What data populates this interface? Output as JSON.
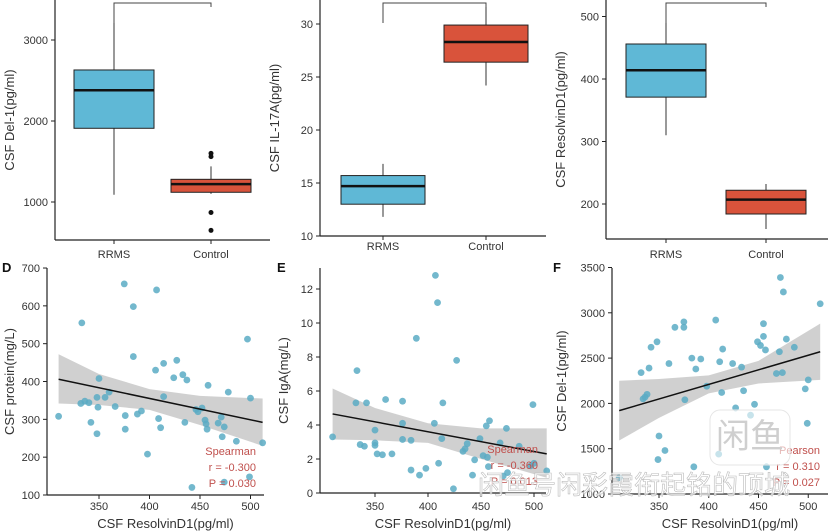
{
  "figure": {
    "colors": {
      "rrms": "#5fb8d6",
      "control": "#d9533b",
      "control_fd": "#c2594a",
      "point": "#5aabc4",
      "ci_band": "#c8c8c8",
      "fit_line": "#111111",
      "stat_text": "#c0504d",
      "axis": "#222222"
    },
    "watermark": {
      "text": "闲鱼号闲彩霞衔起铭的顶城",
      "logo_text": "闲鱼"
    }
  },
  "chart_data": [
    {
      "id": "A",
      "panel_label": "",
      "type": "box",
      "title": "",
      "xlabel": "",
      "ylabel": "CSF Del-1(pg/ml)",
      "ylim": [
        500,
        3500
      ],
      "yticks": [
        1000,
        2000,
        3000
      ],
      "categories": [
        "RRMS",
        "Control"
      ],
      "boxes": [
        {
          "group": "RRMS",
          "min": 1090,
          "q1": 1910,
          "median": 2380,
          "q3": 2630,
          "max": 3450,
          "outliers": []
        },
        {
          "group": "Control",
          "min": 1100,
          "q1": 1120,
          "median": 1220,
          "q3": 1280,
          "max": 1440,
          "outliers": [
            1600,
            1560,
            870,
            650
          ]
        }
      ],
      "significance_bracket": true
    },
    {
      "id": "B",
      "panel_label": "",
      "type": "box",
      "title": "",
      "xlabel": "",
      "ylabel": "CSF IL-17A(pg/ml)",
      "ylim": [
        10,
        32.3
      ],
      "yticks": [
        10,
        15,
        20,
        25,
        30
      ],
      "categories": [
        "RRMS",
        "Control"
      ],
      "boxes": [
        {
          "group": "RRMS",
          "min": 11.8,
          "q1": 13.0,
          "median": 14.7,
          "q3": 15.7,
          "max": 16.8,
          "outliers": []
        },
        {
          "group": "Control",
          "min": 24.2,
          "q1": 26.4,
          "median": 28.3,
          "q3": 29.9,
          "max": 31.7,
          "outliers": []
        }
      ],
      "significance_bracket": true
    },
    {
      "id": "C",
      "panel_label": "",
      "type": "box",
      "title": "",
      "xlabel": "",
      "ylabel": "CSF ResolvinD1(pg/ml)",
      "ylim": [
        145,
        525
      ],
      "yticks": [
        200,
        300,
        400,
        500
      ],
      "categories": [
        "RRMS",
        "Control"
      ],
      "boxes": [
        {
          "group": "RRMS",
          "min": 310,
          "q1": 371,
          "median": 414,
          "q3": 456,
          "max": 512,
          "outliers": []
        },
        {
          "group": "Control",
          "min": 160,
          "q1": 184,
          "median": 207,
          "q3": 222,
          "max": 232,
          "outliers": []
        }
      ],
      "significance_bracket": true
    },
    {
      "id": "D",
      "panel_label": "D",
      "type": "scatter",
      "title": "",
      "xlabel": "CSF ResolvinD1(pg/ml)",
      "ylabel": "CSF protein(mg/L)",
      "xlim": [
        305,
        515
      ],
      "ylim": [
        100,
        700
      ],
      "xticks": [
        350,
        400,
        450,
        500
      ],
      "yticks": [
        100,
        200,
        300,
        400,
        500,
        600,
        700
      ],
      "fit": {
        "x0": 310,
        "y0": 406,
        "x1": 512,
        "y1": 292
      },
      "ci": {
        "upper": [
          [
            310,
            472
          ],
          [
            350,
            420
          ],
          [
            400,
            380
          ],
          [
            450,
            362
          ],
          [
            512,
            355
          ]
        ],
        "lower": [
          [
            310,
            342
          ],
          [
            350,
            338
          ],
          [
            400,
            325
          ],
          [
            450,
            285
          ],
          [
            512,
            230
          ]
        ]
      },
      "stats": {
        "method": "Spearman",
        "r": "r = -0.300",
        "p": "P = 0.030"
      },
      "points": [
        [
          310,
          308
        ],
        [
          333,
          555
        ],
        [
          332,
          342
        ],
        [
          336,
          348
        ],
        [
          340,
          344
        ],
        [
          342,
          292
        ],
        [
          348,
          262
        ],
        [
          348,
          358
        ],
        [
          349,
          332
        ],
        [
          350,
          408
        ],
        [
          356,
          358
        ],
        [
          360,
          372
        ],
        [
          366,
          334
        ],
        [
          375,
          658
        ],
        [
          376,
          274
        ],
        [
          376,
          310
        ],
        [
          384,
          598
        ],
        [
          384,
          466
        ],
        [
          388,
          314
        ],
        [
          392,
          322
        ],
        [
          398,
          208
        ],
        [
          406,
          430
        ],
        [
          407,
          642
        ],
        [
          409,
          302
        ],
        [
          411,
          278
        ],
        [
          414,
          448
        ],
        [
          414,
          360
        ],
        [
          424,
          410
        ],
        [
          427,
          456
        ],
        [
          433,
          418
        ],
        [
          435,
          292
        ],
        [
          437,
          404
        ],
        [
          442,
          120
        ],
        [
          446,
          326
        ],
        [
          448,
          320
        ],
        [
          452,
          330
        ],
        [
          455,
          298
        ],
        [
          456,
          288
        ],
        [
          457,
          274
        ],
        [
          458,
          390
        ],
        [
          468,
          290
        ],
        [
          471,
          306
        ],
        [
          472,
          254
        ],
        [
          474,
          280
        ],
        [
          474,
          134
        ],
        [
          478,
          372
        ],
        [
          486,
          242
        ],
        [
          497,
          512
        ],
        [
          499,
          148
        ],
        [
          500,
          356
        ],
        [
          512,
          238
        ]
      ]
    },
    {
      "id": "E",
      "panel_label": "E",
      "type": "scatter",
      "title": "",
      "xlabel": "CSF ResolvinD1(pg/ml)",
      "ylabel": "CSF IgA(mg/L)",
      "xlim": [
        305,
        515
      ],
      "ylim": [
        0,
        13.2
      ],
      "xticks": [
        350,
        400,
        450,
        500
      ],
      "yticks": [
        0,
        2,
        4,
        6,
        8,
        10,
        12
      ],
      "fit": {
        "x0": 310,
        "y0": 4.65,
        "x1": 512,
        "y1": 2.3
      },
      "ci": {
        "upper": [
          [
            310,
            6.15
          ],
          [
            350,
            5.0
          ],
          [
            400,
            4.1
          ],
          [
            450,
            3.8
          ],
          [
            512,
            3.8
          ]
        ],
        "lower": [
          [
            310,
            3.15
          ],
          [
            350,
            3.1
          ],
          [
            400,
            2.95
          ],
          [
            450,
            2.0
          ],
          [
            512,
            0.9
          ]
        ]
      },
      "stats": {
        "method": "Spearman",
        "r": "r = -0.360",
        "p": "P = 0.013"
      },
      "points": [
        [
          310,
          3.3
        ],
        [
          332,
          5.3
        ],
        [
          333,
          7.2
        ],
        [
          336,
          2.85
        ],
        [
          340,
          2.75
        ],
        [
          342,
          5.3
        ],
        [
          350,
          3.7
        ],
        [
          350,
          2.95
        ],
        [
          350,
          2.8
        ],
        [
          352,
          2.3
        ],
        [
          357,
          2.25
        ],
        [
          360,
          5.5
        ],
        [
          366,
          2.3
        ],
        [
          376,
          5.4
        ],
        [
          376,
          4.1
        ],
        [
          376,
          3.15
        ],
        [
          384,
          3.1
        ],
        [
          384,
          1.35
        ],
        [
          389,
          9.1
        ],
        [
          392,
          1.05
        ],
        [
          398,
          1.45
        ],
        [
          406,
          4.1
        ],
        [
          407,
          12.8
        ],
        [
          409,
          11.2
        ],
        [
          410,
          1.75
        ],
        [
          413,
          3.2
        ],
        [
          414,
          5.3
        ],
        [
          424,
          0.25
        ],
        [
          427,
          7.8
        ],
        [
          433,
          2.45
        ],
        [
          435,
          2.6
        ],
        [
          437,
          2.9
        ],
        [
          442,
          1.05
        ],
        [
          444,
          1.95
        ],
        [
          449,
          3.2
        ],
        [
          452,
          2.2
        ],
        [
          455,
          3.95
        ],
        [
          456,
          2.1
        ],
        [
          457,
          1.55
        ],
        [
          458,
          4.25
        ],
        [
          468,
          2.95
        ],
        [
          471,
          1.0
        ],
        [
          474,
          3.8
        ],
        [
          475,
          1.2
        ],
        [
          486,
          2.75
        ],
        [
          497,
          1.6
        ],
        [
          499,
          5.2
        ],
        [
          500,
          1.75
        ],
        [
          512,
          1.3
        ]
      ]
    },
    {
      "id": "F",
      "panel_label": "F",
      "type": "scatter",
      "title": "",
      "xlabel": "CSF ResolvinD1(pg/ml)",
      "ylabel": "CSF Del-1(pg/ml)",
      "xlim": [
        305,
        515
      ],
      "ylim": [
        1000,
        3500
      ],
      "xticks": [
        350,
        400,
        450,
        500
      ],
      "yticks": [
        1000,
        1500,
        2000,
        2500,
        3000,
        3500
      ],
      "fit": {
        "x0": 310,
        "y0": 1920,
        "x1": 512,
        "y1": 2570
      },
      "ci": {
        "upper": [
          [
            310,
            2250
          ],
          [
            350,
            2270
          ],
          [
            400,
            2310
          ],
          [
            450,
            2470
          ],
          [
            512,
            2880
          ]
        ],
        "lower": [
          [
            310,
            1590
          ],
          [
            350,
            1840
          ],
          [
            400,
            2110
          ],
          [
            450,
            2220
          ],
          [
            512,
            2260
          ]
        ]
      },
      "stats": {
        "method": "Pearson",
        "r": "r = 0.310",
        "p": "P = 0.027"
      },
      "points": [
        [
          310,
          1180
        ],
        [
          332,
          2340
        ],
        [
          334,
          2050
        ],
        [
          336,
          2070
        ],
        [
          338,
          2100
        ],
        [
          340,
          2390
        ],
        [
          342,
          2620
        ],
        [
          348,
          2680
        ],
        [
          349,
          1380
        ],
        [
          350,
          1640
        ],
        [
          356,
          1480
        ],
        [
          360,
          2440
        ],
        [
          366,
          2840
        ],
        [
          375,
          2900
        ],
        [
          375,
          2840
        ],
        [
          376,
          2040
        ],
        [
          383,
          2500
        ],
        [
          385,
          1300
        ],
        [
          387,
          2380
        ],
        [
          392,
          2490
        ],
        [
          398,
          2190
        ],
        [
          407,
          2920
        ],
        [
          410,
          1440
        ],
        [
          411,
          2460
        ],
        [
          413,
          2120
        ],
        [
          414,
          2600
        ],
        [
          424,
          2440
        ],
        [
          427,
          1950
        ],
        [
          433,
          2400
        ],
        [
          435,
          2140
        ],
        [
          442,
          1870
        ],
        [
          446,
          1990
        ],
        [
          449,
          2680
        ],
        [
          452,
          2640
        ],
        [
          455,
          2880
        ],
        [
          455,
          2740
        ],
        [
          457,
          2590
        ],
        [
          458,
          1300
        ],
        [
          468,
          2330
        ],
        [
          471,
          2570
        ],
        [
          472,
          3390
        ],
        [
          474,
          2340
        ],
        [
          475,
          3230
        ],
        [
          478,
          2710
        ],
        [
          486,
          2620
        ],
        [
          497,
          2160
        ],
        [
          499,
          1780
        ],
        [
          500,
          2260
        ],
        [
          512,
          3100
        ]
      ]
    }
  ]
}
